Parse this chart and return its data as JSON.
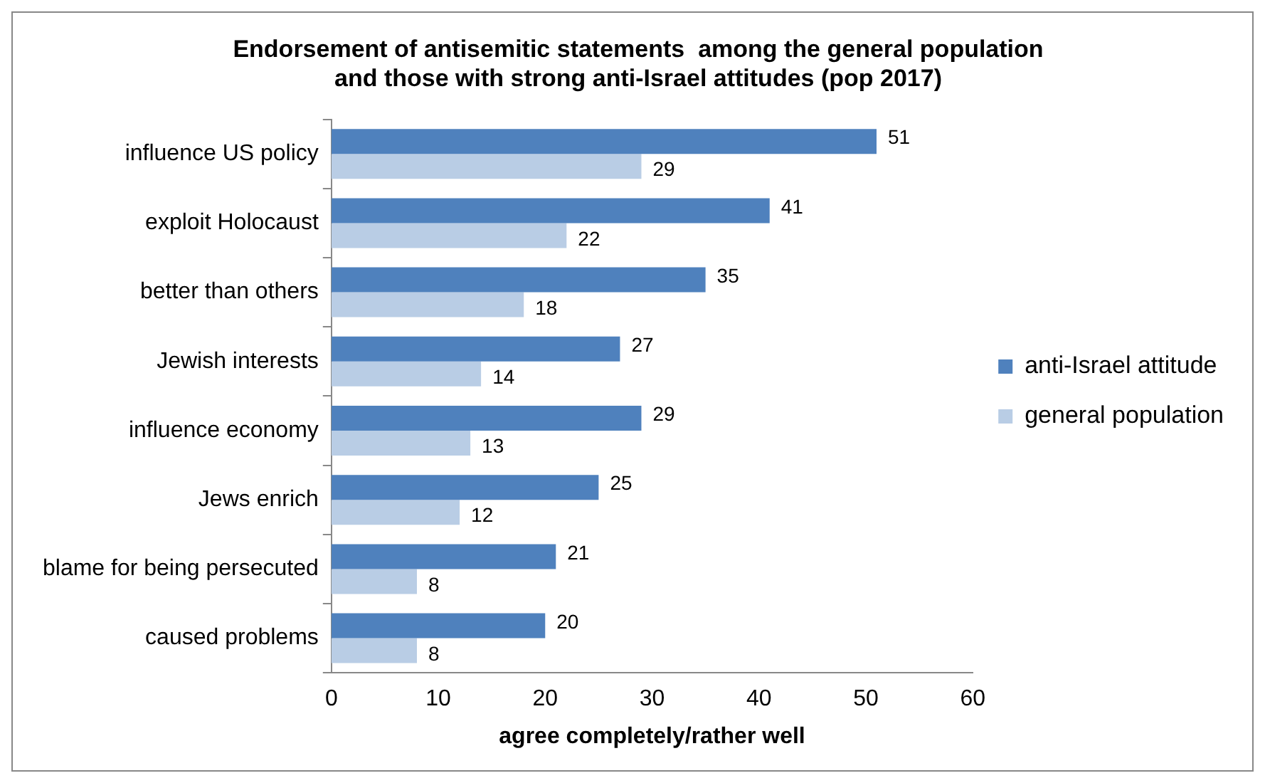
{
  "chart_data": {
    "type": "bar",
    "orientation": "horizontal",
    "title": [
      "Endorsement of antisemitic statements  among the general population",
      "and those with strong anti-Israel attitudes (pop 2017)"
    ],
    "xlabel": "agree completely/rather well",
    "categories": [
      "influence US policy",
      "exploit Holocaust",
      "better than others",
      "Jewish interests",
      "influence economy",
      "Jews enrich",
      "blame for being persecuted",
      "caused problems"
    ],
    "series": [
      {
        "name": "anti-Israel attitude",
        "color": "#4f81bd",
        "values": [
          51,
          41,
          35,
          27,
          29,
          25,
          21,
          20
        ]
      },
      {
        "name": "general population",
        "color": "#b9cde5",
        "values": [
          29,
          22,
          18,
          14,
          13,
          12,
          8,
          8
        ]
      }
    ],
    "xlim": [
      0,
      60
    ],
    "xticks": [
      0,
      10,
      20,
      30,
      40,
      50,
      60
    ],
    "grid": false,
    "legend": "right",
    "data_labels": true
  }
}
